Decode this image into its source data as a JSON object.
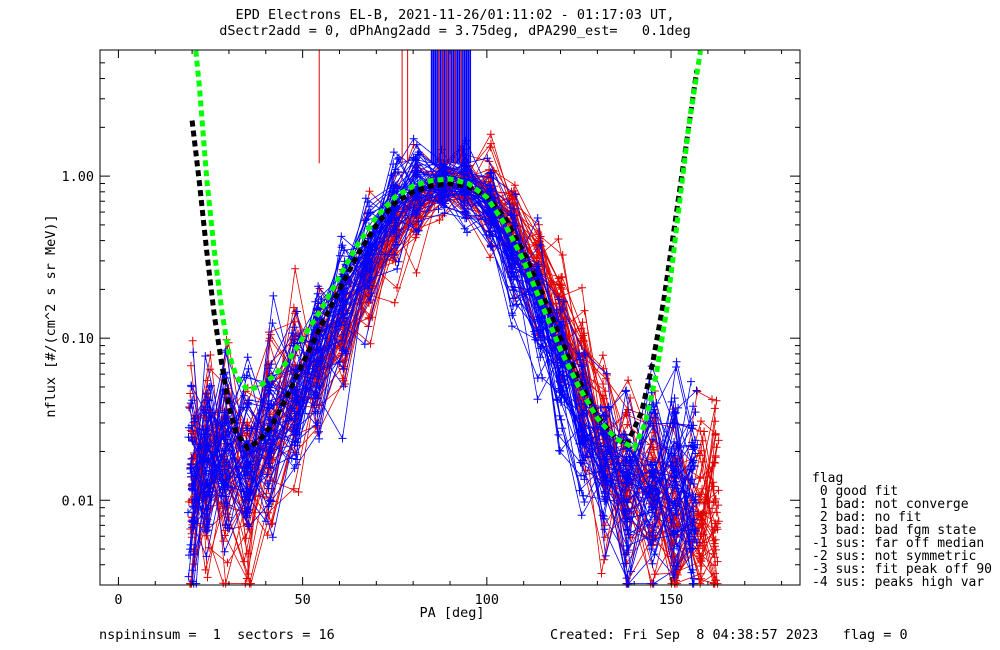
{
  "title": {
    "line1": "EPD Electrons EL-B, 2021-11-26/01:11:02 - 01:17:03 UT,",
    "line2": "dSectr2add = 0, dPhAng2add = 3.75deg, dPA290_est=   0.1deg"
  },
  "footer": {
    "left": "nspininsum =  1  sectors = 16",
    "right": "Created: Fri Sep  8 04:38:57 2023   flag = 0"
  },
  "legend": {
    "title": "flag",
    "items": [
      " 0 good fit",
      " 1 bad: not converge",
      " 2 bad: no fit",
      " 3 bad: bad fgm state",
      "-1 sus: far off median",
      "-2 sus: not symmetric",
      "-3 sus: fit peak off 90",
      "-4 sus: peaks high var"
    ]
  },
  "chart_data": {
    "type": "line",
    "xlabel": "PA [deg]",
    "ylabel": "nflux [#/(cm^2 s sr MeV)]",
    "xlim": [
      -5,
      185
    ],
    "ylim": [
      0.003,
      6.0
    ],
    "y_scale": "log",
    "x_ticks": [
      0,
      50,
      100,
      150
    ],
    "x_tick_labels": [
      "0",
      "50",
      "100",
      "150"
    ],
    "y_ticks": [
      0.01,
      0.1,
      1.0
    ],
    "y_tick_labels": [
      "0.01",
      "0.10",
      "1.00"
    ],
    "colors": {
      "red": "#e00000",
      "blue": "#0000ff",
      "black": "#000000",
      "green": "#00ff00"
    },
    "red_pa": [
      20,
      24,
      29,
      35,
      41,
      48,
      54,
      61,
      68,
      75,
      81,
      88,
      94,
      101,
      107,
      114,
      120,
      126,
      132,
      138,
      145,
      151,
      158,
      162
    ],
    "blue_pa": [
      20,
      24,
      29,
      35,
      41,
      48,
      54,
      61,
      68,
      75,
      81,
      88,
      94,
      101,
      107,
      114,
      120,
      126,
      132,
      138,
      145,
      151,
      156
    ],
    "red_profile": [
      0.012,
      0.013,
      0.015,
      0.018,
      0.025,
      0.04,
      0.07,
      0.12,
      0.24,
      0.45,
      0.7,
      0.85,
      0.88,
      0.72,
      0.48,
      0.26,
      0.12,
      0.05,
      0.022,
      0.012,
      0.01,
      0.009,
      0.009,
      0.008
    ],
    "blue_profile": [
      0.012,
      0.014,
      0.016,
      0.02,
      0.028,
      0.045,
      0.08,
      0.16,
      0.33,
      0.6,
      0.82,
      0.9,
      0.86,
      0.62,
      0.33,
      0.15,
      0.065,
      0.03,
      0.015,
      0.011,
      0.012,
      0.013,
      0.014
    ],
    "red_curve_count": 45,
    "blue_curve_count": 50,
    "fit_black": {
      "x": [
        20,
        22,
        24,
        26,
        28,
        30,
        32,
        35,
        38,
        42,
        46,
        50,
        55,
        60,
        65,
        70,
        75,
        80,
        85,
        90,
        95,
        100,
        105,
        110,
        115,
        120,
        125,
        130,
        135,
        138,
        142,
        145,
        148,
        151,
        154,
        157
      ],
      "y": [
        2.2,
        0.9,
        0.34,
        0.14,
        0.07,
        0.038,
        0.026,
        0.021,
        0.023,
        0.03,
        0.045,
        0.07,
        0.12,
        0.2,
        0.33,
        0.5,
        0.68,
        0.8,
        0.87,
        0.9,
        0.86,
        0.75,
        0.55,
        0.34,
        0.19,
        0.1,
        0.055,
        0.033,
        0.024,
        0.022,
        0.035,
        0.07,
        0.17,
        0.5,
        1.5,
        4.5
      ]
    },
    "fit_green": {
      "x": [
        21,
        22,
        24,
        26,
        28,
        30,
        32,
        35,
        38,
        42,
        46,
        50,
        55,
        60,
        65,
        70,
        75,
        80,
        85,
        90,
        95,
        100,
        105,
        110,
        115,
        120,
        125,
        130,
        135,
        140,
        143,
        146,
        149,
        152,
        155,
        158
      ],
      "y": [
        6.0,
        3.5,
        0.95,
        0.35,
        0.15,
        0.08,
        0.058,
        0.048,
        0.05,
        0.058,
        0.072,
        0.1,
        0.15,
        0.24,
        0.38,
        0.56,
        0.74,
        0.87,
        0.94,
        0.96,
        0.9,
        0.74,
        0.5,
        0.3,
        0.16,
        0.085,
        0.05,
        0.032,
        0.024,
        0.021,
        0.03,
        0.06,
        0.16,
        0.6,
        2.2,
        6.0
      ]
    },
    "peak_markers": {
      "red_x": [
        54.5,
        77,
        78.5,
        87,
        88,
        89,
        90,
        91.5,
        93
      ],
      "blue_x": [
        85,
        85.5,
        86,
        86.5,
        87,
        87.5,
        88,
        88.5,
        89,
        89.5,
        90,
        90.5,
        91,
        91.5,
        92,
        92.5,
        93,
        93.5,
        94,
        94.5,
        95,
        95.5
      ],
      "y_from": 1.2,
      "y_to": 6.0
    }
  }
}
